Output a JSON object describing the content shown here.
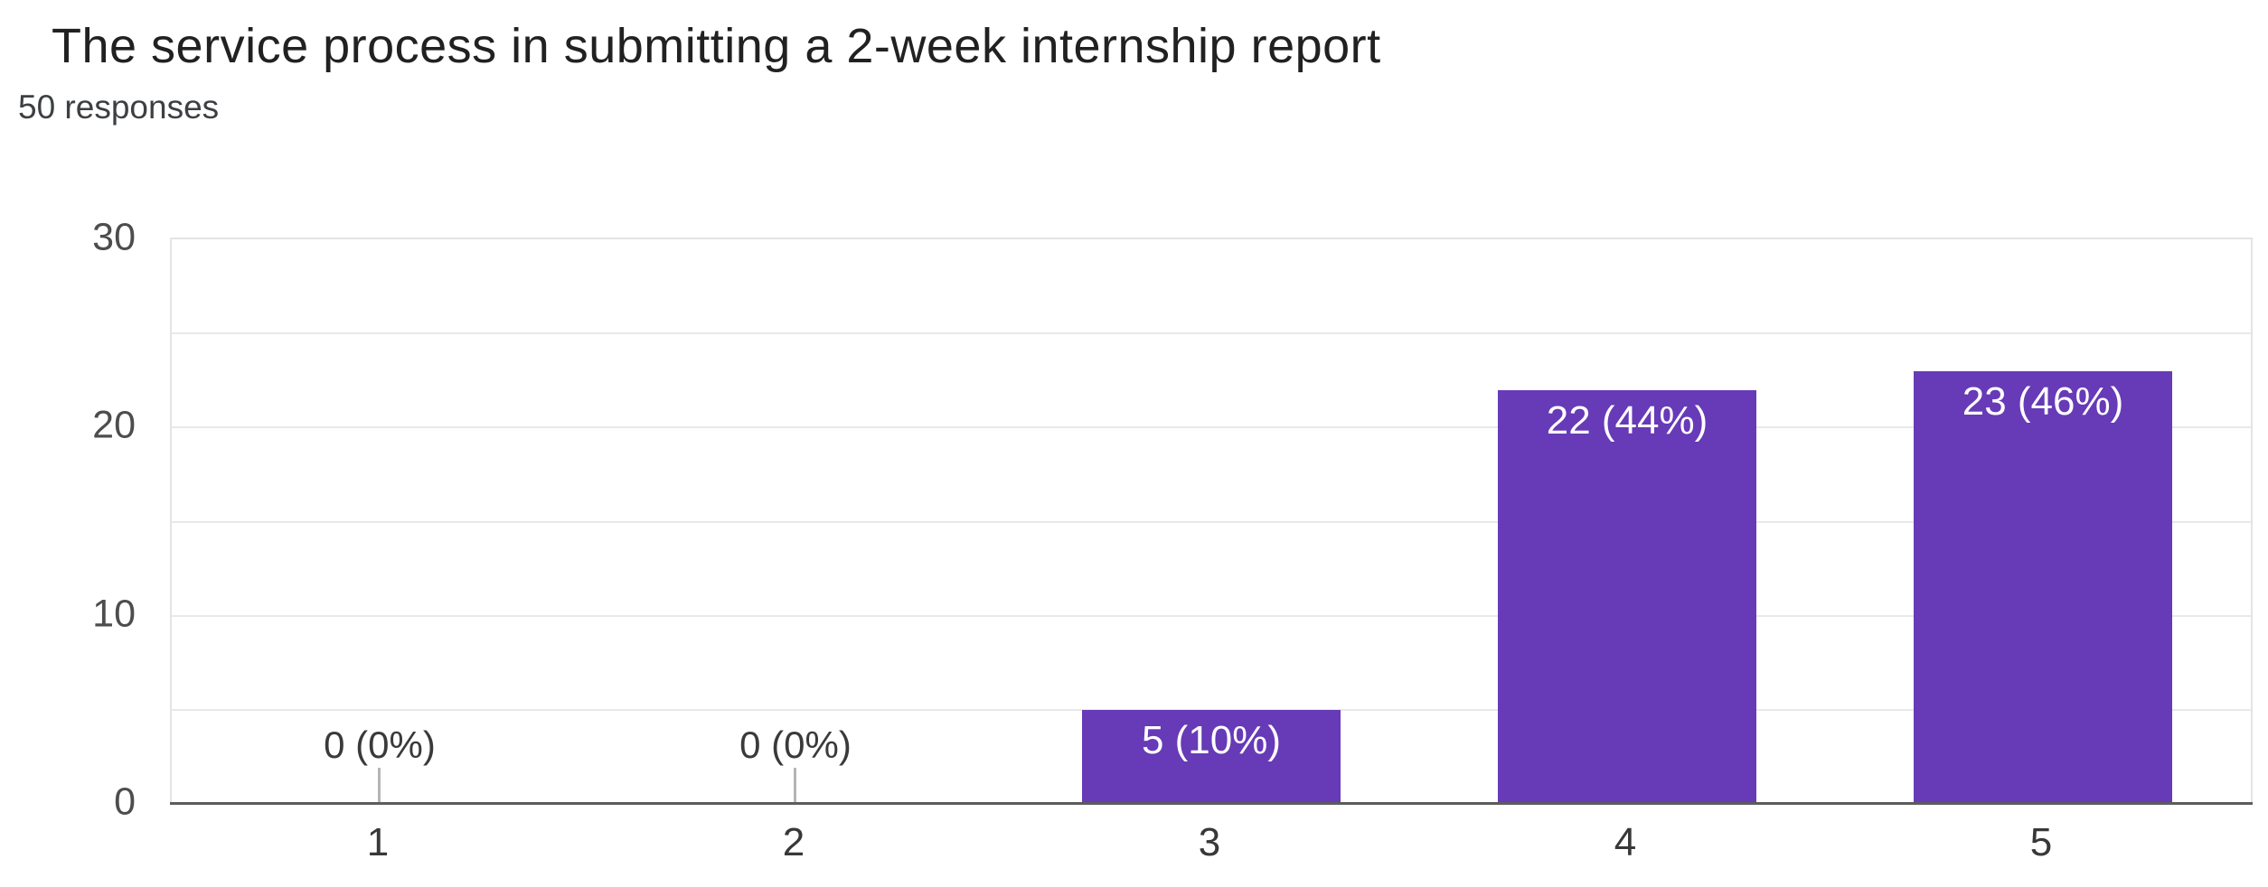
{
  "header": {
    "title": "The service process in submitting a 2-week internship report",
    "subtitle": "50 responses"
  },
  "chart_data": {
    "type": "bar",
    "title": "The service process in submitting a 2-week internship report",
    "subtitle": "50 responses",
    "categories": [
      "1",
      "2",
      "3",
      "4",
      "5"
    ],
    "values": [
      0,
      0,
      5,
      22,
      23
    ],
    "bar_labels": [
      "0 (0%)",
      "0 (0%)",
      "5 (10%)",
      "22 (44%)",
      "23 (46%)"
    ],
    "percentages": [
      0,
      0,
      10,
      44,
      46
    ],
    "total_responses": 50,
    "yticks": [
      0,
      10,
      20,
      30
    ],
    "gridline_values": [
      5,
      10,
      15,
      20,
      25
    ],
    "ylim": [
      0,
      30
    ],
    "xlabel": "",
    "ylabel": "",
    "grid": true,
    "legend": "none",
    "colors": {
      "bar": "#673ab7",
      "bar_label_text": "#ffffff",
      "zero_label_text": "#3a3a3a",
      "axis_baseline": "#5c5c5c",
      "gridline": "#e9e9e9",
      "tick_text": "#4d4d4d"
    }
  }
}
